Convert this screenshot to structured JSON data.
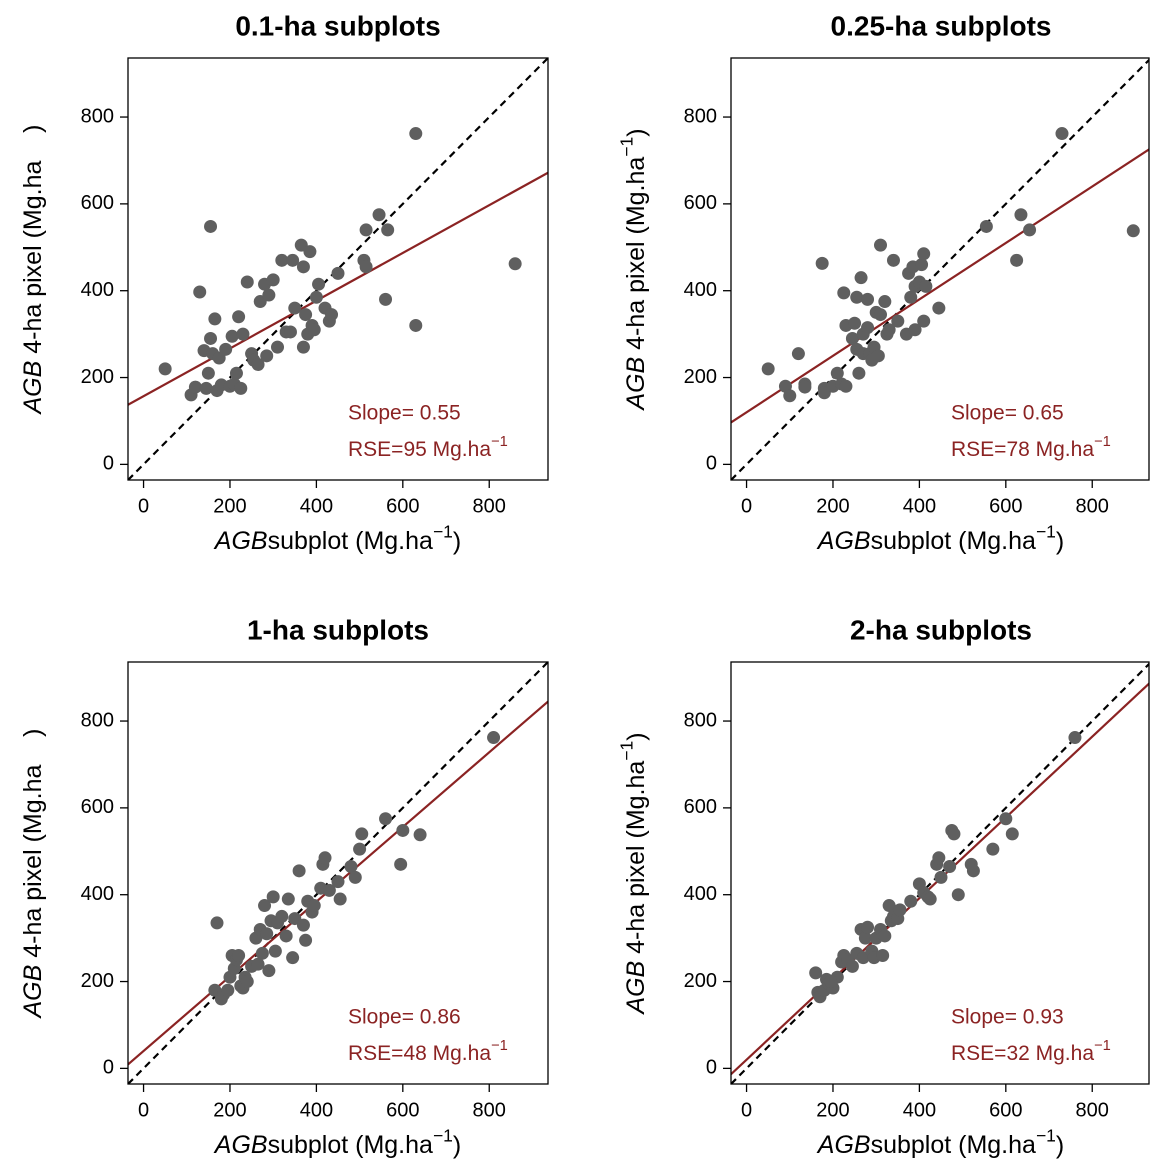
{
  "chart_data": [
    {
      "type": "scatter",
      "title": "0.1-ha subplots",
      "x_label": [
        {
          "text": "AGB",
          "style": "italic"
        },
        {
          "text": "subplot (Mg.ha"
        },
        {
          "text": "−1",
          "style": "sup"
        },
        {
          "text": ")"
        }
      ],
      "y_label": [
        {
          "text": "AGB",
          "style": "italic"
        },
        {
          "text": " 4-ha pixel (Mg.ha"
        },
        {
          "text": "    )"
        }
      ],
      "xlim": [
        -36,
        936
      ],
      "ylim": [
        -36,
        936
      ],
      "xticks": [
        0,
        200,
        400,
        600,
        800
      ],
      "yticks": [
        0,
        200,
        400,
        600,
        800
      ],
      "color": "#5f5f5f",
      "x": [
        50,
        155,
        130,
        110,
        120,
        140,
        145,
        150,
        155,
        160,
        165,
        170,
        175,
        180,
        190,
        200,
        205,
        210,
        215,
        220,
        225,
        230,
        250,
        255,
        265,
        270,
        280,
        285,
        290,
        300,
        310,
        320,
        330,
        340,
        350,
        365,
        370,
        370,
        375,
        380,
        385,
        390,
        395,
        400,
        405,
        420,
        430,
        435,
        450,
        510,
        515,
        515,
        545,
        560,
        565,
        630,
        630,
        860,
        345,
        240
      ],
      "values": [
        220,
        548,
        397,
        160,
        178,
        262,
        175,
        210,
        290,
        255,
        335,
        170,
        245,
        183,
        265,
        180,
        295,
        185,
        210,
        340,
        175,
        300,
        255,
        240,
        230,
        375,
        415,
        250,
        390,
        425,
        270,
        470,
        305,
        305,
        360,
        505,
        270,
        455,
        345,
        300,
        490,
        320,
        310,
        385,
        415,
        360,
        330,
        345,
        440,
        470,
        540,
        455,
        575,
        380,
        540,
        320,
        762,
        462,
        470,
        420
      ],
      "fit": {
        "slope": 0.55,
        "intercept": 157,
        "color": "#8b2323",
        "label": "Slope= 0.55"
      },
      "rse_label": [
        {
          "text": "RSE=95 Mg.ha"
        },
        {
          "text": "−1",
          "style": "sup"
        }
      ],
      "reference_line": {
        "slope": 1,
        "intercept": 0,
        "color": "#000000",
        "dashed": true
      }
    },
    {
      "type": "scatter",
      "title": "0.25-ha subplots",
      "x_label": [
        {
          "text": "AGB",
          "style": "italic"
        },
        {
          "text": "subplot (Mg.ha"
        },
        {
          "text": "−1",
          "style": "sup"
        },
        {
          "text": ")"
        }
      ],
      "y_label": [
        {
          "text": "AGB",
          "style": "italic"
        },
        {
          "text": " 4-ha pixel (Mg.ha"
        },
        {
          "text": "−1",
          "style": "sup"
        },
        {
          "text": ")"
        }
      ],
      "xlim": [
        -36,
        936
      ],
      "ylim": [
        -36,
        936
      ],
      "xticks": [
        0,
        200,
        400,
        600,
        800
      ],
      "yticks": [
        0,
        200,
        400,
        600,
        800
      ],
      "color": "#5f5f5f",
      "x": [
        50,
        90,
        100,
        120,
        135,
        135,
        175,
        180,
        180,
        200,
        210,
        220,
        225,
        230,
        245,
        250,
        255,
        255,
        260,
        265,
        270,
        270,
        280,
        285,
        290,
        295,
        300,
        305,
        310,
        310,
        320,
        325,
        330,
        340,
        350,
        370,
        375,
        380,
        385,
        390,
        390,
        400,
        405,
        410,
        410,
        415,
        445,
        555,
        625,
        635,
        655,
        730,
        895,
        280,
        230
      ],
      "values": [
        220,
        180,
        158,
        255,
        185,
        178,
        463,
        175,
        165,
        180,
        210,
        185,
        395,
        320,
        290,
        325,
        265,
        385,
        210,
        430,
        255,
        300,
        380,
        255,
        240,
        270,
        350,
        250,
        345,
        505,
        375,
        300,
        310,
        470,
        330,
        300,
        440,
        385,
        455,
        310,
        410,
        420,
        460,
        330,
        485,
        410,
        360,
        548,
        470,
        575,
        540,
        762,
        538,
        315,
        180
      ],
      "fit": {
        "slope": 0.65,
        "intercept": 120,
        "color": "#8b2323",
        "label": "Slope= 0.65"
      },
      "rse_label": [
        {
          "text": "RSE=78 Mg.ha"
        },
        {
          "text": "−1",
          "style": "sup"
        }
      ],
      "reference_line": {
        "slope": 1,
        "intercept": 0,
        "color": "#000000",
        "dashed": true
      }
    },
    {
      "type": "scatter",
      "title": "1-ha subplots",
      "x_label": [
        {
          "text": "AGB",
          "style": "italic"
        },
        {
          "text": "subplot (Mg.ha"
        },
        {
          "text": "−1",
          "style": "sup"
        },
        {
          "text": ")"
        }
      ],
      "y_label": [
        {
          "text": "AGB",
          "style": "italic"
        },
        {
          "text": " 4-ha pixel (Mg.ha"
        },
        {
          "text": "    )"
        }
      ],
      "xlim": [
        -36,
        936
      ],
      "ylim": [
        -36,
        936
      ],
      "xticks": [
        0,
        200,
        400,
        600,
        800
      ],
      "yticks": [
        0,
        200,
        400,
        600,
        800
      ],
      "color": "#5f5f5f",
      "x": [
        165,
        170,
        180,
        185,
        195,
        200,
        205,
        210,
        215,
        220,
        225,
        230,
        235,
        250,
        260,
        265,
        270,
        275,
        280,
        285,
        290,
        295,
        300,
        305,
        310,
        320,
        330,
        335,
        345,
        350,
        360,
        370,
        375,
        380,
        390,
        395,
        410,
        415,
        420,
        430,
        450,
        455,
        480,
        490,
        500,
        505,
        560,
        595,
        600,
        640,
        810,
        240
      ],
      "values": [
        180,
        335,
        160,
        170,
        180,
        210,
        260,
        230,
        250,
        260,
        190,
        185,
        210,
        235,
        300,
        240,
        320,
        265,
        375,
        310,
        225,
        340,
        395,
        270,
        335,
        350,
        305,
        390,
        255,
        345,
        455,
        330,
        295,
        385,
        360,
        375,
        415,
        470,
        485,
        410,
        430,
        390,
        465,
        440,
        505,
        540,
        575,
        470,
        548,
        538,
        762,
        200
      ],
      "fit": {
        "slope": 0.86,
        "intercept": 40,
        "color": "#8b2323",
        "label": "Slope= 0.86"
      },
      "rse_label": [
        {
          "text": "RSE=48 Mg.ha"
        },
        {
          "text": "−1",
          "style": "sup"
        }
      ],
      "reference_line": {
        "slope": 1,
        "intercept": 0,
        "color": "#000000",
        "dashed": true
      }
    },
    {
      "type": "scatter",
      "title": "2-ha subplots",
      "x_label": [
        {
          "text": "AGB",
          "style": "italic"
        },
        {
          "text": "subplot (Mg.ha"
        },
        {
          "text": "−1",
          "style": "sup"
        },
        {
          "text": ")"
        }
      ],
      "y_label": [
        {
          "text": "AGB",
          "style": "italic"
        },
        {
          "text": " 4-ha pixel (Mg.ha"
        },
        {
          "text": "−1",
          "style": "sup"
        },
        {
          "text": ")"
        }
      ],
      "xlim": [
        -36,
        936
      ],
      "ylim": [
        -36,
        936
      ],
      "xticks": [
        0,
        200,
        400,
        600,
        800
      ],
      "yticks": [
        0,
        200,
        400,
        600,
        800
      ],
      "color": "#5f5f5f",
      "x": [
        160,
        165,
        170,
        180,
        185,
        190,
        200,
        210,
        220,
        225,
        235,
        245,
        255,
        265,
        270,
        275,
        280,
        290,
        295,
        300,
        310,
        315,
        320,
        330,
        335,
        340,
        350,
        380,
        400,
        410,
        420,
        425,
        440,
        445,
        450,
        470,
        475,
        480,
        490,
        520,
        525,
        570,
        600,
        615,
        760,
        195,
        355
      ],
      "values": [
        220,
        175,
        165,
        180,
        205,
        195,
        185,
        210,
        245,
        260,
        250,
        235,
        265,
        320,
        255,
        300,
        325,
        270,
        255,
        300,
        320,
        260,
        305,
        375,
        340,
        350,
        345,
        385,
        425,
        405,
        395,
        390,
        470,
        485,
        440,
        465,
        548,
        540,
        400,
        470,
        455,
        505,
        575,
        540,
        762,
        200,
        365
      ],
      "fit": {
        "slope": 0.93,
        "intercept": 20,
        "color": "#8b2323",
        "label": "Slope= 0.93"
      },
      "rse_label": [
        {
          "text": "RSE=32 Mg.ha"
        },
        {
          "text": "−1",
          "style": "sup"
        }
      ],
      "reference_line": {
        "slope": 1,
        "intercept": 0,
        "color": "#000000",
        "dashed": true
      }
    }
  ]
}
